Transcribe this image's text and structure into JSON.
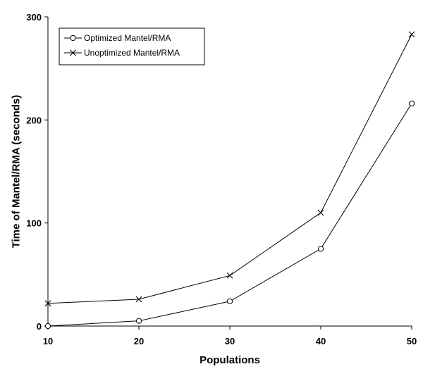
{
  "chart_data": {
    "type": "line",
    "xlabel": "Populations",
    "ylabel": "Time of Mantel/RMA (seconds)",
    "x": [
      10,
      20,
      30,
      40,
      50
    ],
    "xlim": [
      10,
      50
    ],
    "ylim": [
      0,
      300
    ],
    "xticks": [
      10,
      20,
      30,
      40,
      50
    ],
    "yticks": [
      0,
      100,
      200,
      300
    ],
    "grid": false,
    "legend_position": "top-left",
    "series": [
      {
        "name": "Optimized Mantel/RMA",
        "marker": "circle",
        "color": "#000000",
        "values": [
          0,
          5,
          24,
          75,
          216
        ]
      },
      {
        "name": "Unoptimized Mantel/RMA",
        "marker": "x",
        "color": "#000000",
        "values": [
          22,
          26,
          49,
          110,
          283
        ]
      }
    ]
  }
}
